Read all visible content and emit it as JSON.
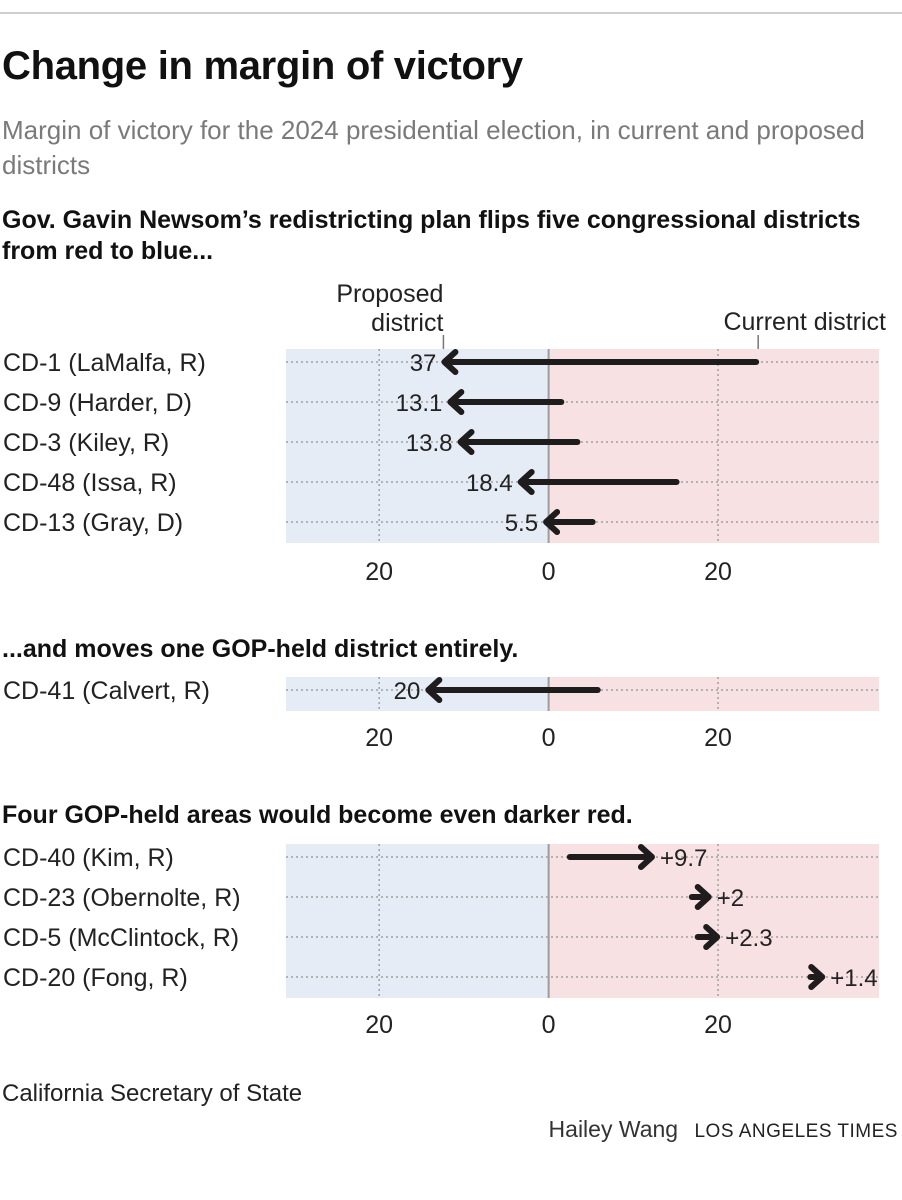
{
  "header": {
    "title": "Change in margin of victory",
    "subtitle": "Margin of victory for the 2024 presidential election, in current and proposed districts"
  },
  "annotations": {
    "proposed": [
      "Proposed",
      "district"
    ],
    "current": "Current district"
  },
  "footer": {
    "source": "California Secretary of State",
    "author": "Hailey Wang",
    "org": "LOS ANGELES TIMES"
  },
  "colors": {
    "dem_bg": "#e6ecf5",
    "rep_bg": "#f8e1e3",
    "arrow": "#1f1c1d",
    "grid": "#a0a0a0",
    "zero_line": "#9c9c9c"
  },
  "chart_data": [
    {
      "type": "arrow",
      "heading": "Gov. Gavin Newsom’s redistricting plan flips five congressional districts from red to blue...",
      "xlim": [
        -31,
        39
      ],
      "ticks": [
        {
          "value": -20,
          "label": "20"
        },
        {
          "value": 0,
          "label": "0"
        },
        {
          "value": 20,
          "label": "20"
        }
      ],
      "rows": [
        {
          "district": "CD-1 (LaMalfa, R)",
          "current": 24.5,
          "proposed": -12.3,
          "label": "37"
        },
        {
          "district": "CD-9 (Harder, D)",
          "current": 1.5,
          "proposed": -11.6,
          "label": "13.1"
        },
        {
          "district": "CD-3 (Kiley, R)",
          "current": 3.4,
          "proposed": -10.4,
          "label": "13.8"
        },
        {
          "district": "CD-48 (Issa, R)",
          "current": 15.1,
          "proposed": -3.3,
          "label": "18.4"
        },
        {
          "district": "CD-13 (Gray, D)",
          "current": 5.2,
          "proposed": -0.3,
          "label": "5.5"
        }
      ]
    },
    {
      "type": "arrow",
      "heading": "...and moves one GOP-held district entirely.",
      "xlim": [
        -31,
        39
      ],
      "ticks": [
        {
          "value": -20,
          "label": "20"
        },
        {
          "value": 0,
          "label": "0"
        },
        {
          "value": 20,
          "label": "20"
        }
      ],
      "rows": [
        {
          "district": "CD-41 (Calvert, R)",
          "current": 5.8,
          "proposed": -14.2,
          "label": "20"
        }
      ]
    },
    {
      "type": "arrow",
      "heading": "Four GOP-held areas would become even darker red.",
      "xlim": [
        -31,
        39
      ],
      "ticks": [
        {
          "value": -20,
          "label": "20"
        },
        {
          "value": 0,
          "label": "0"
        },
        {
          "value": 20,
          "label": "20"
        }
      ],
      "rows": [
        {
          "district": "CD-40 (Kim, R)",
          "current": 2.5,
          "proposed": 12.2,
          "label": "+9.7"
        },
        {
          "district": "CD-23 (Obernolte, R)",
          "current": 16.9,
          "proposed": 18.9,
          "label": "+2"
        },
        {
          "district": "CD-5 (McClintock, R)",
          "current": 17.6,
          "proposed": 19.9,
          "label": "+2.3"
        },
        {
          "district": "CD-20 (Fong, R)",
          "current": 30.9,
          "proposed": 32.3,
          "label": "+1.4"
        }
      ]
    }
  ]
}
